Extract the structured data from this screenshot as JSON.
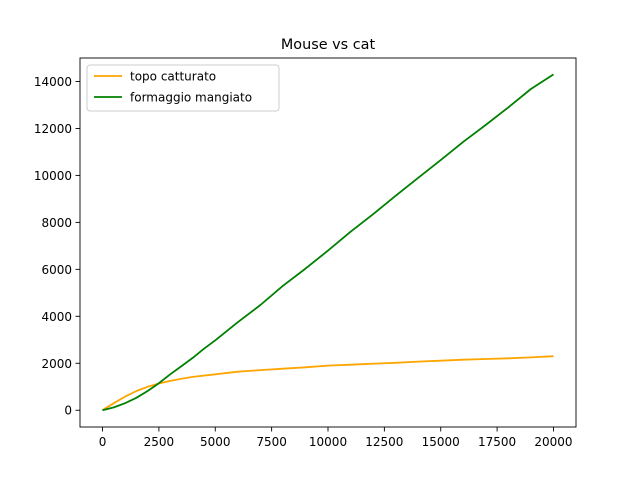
{
  "chart_data": {
    "type": "line",
    "title": "Mouse vs cat",
    "xlabel": "",
    "ylabel": "",
    "xlim": [
      -1000,
      21000
    ],
    "ylim": [
      -714,
      15000
    ],
    "xticks": [
      0,
      2500,
      5000,
      7500,
      10000,
      12500,
      15000,
      17500,
      20000
    ],
    "yticks": [
      0,
      2000,
      4000,
      6000,
      8000,
      10000,
      12000,
      14000
    ],
    "grid": false,
    "legend_position": "upper-left",
    "series": [
      {
        "name": "topo catturato",
        "color": "#ffa500",
        "x": [
          0,
          500,
          1000,
          1500,
          2000,
          2500,
          3000,
          3500,
          4000,
          5000,
          6000,
          7000,
          8000,
          9000,
          10000,
          11000,
          12000,
          13000,
          14000,
          15000,
          16000,
          17000,
          18000,
          19000,
          20000
        ],
        "y": [
          0,
          300,
          580,
          820,
          1000,
          1140,
          1250,
          1340,
          1420,
          1530,
          1640,
          1710,
          1770,
          1830,
          1900,
          1940,
          1980,
          2020,
          2070,
          2110,
          2150,
          2180,
          2210,
          2250,
          2300
        ]
      },
      {
        "name": "formaggio mangiato",
        "color": "#008000",
        "x": [
          0,
          500,
          1000,
          1500,
          2000,
          2500,
          3000,
          3500,
          4000,
          4500,
          5000,
          6000,
          7000,
          8000,
          9000,
          10000,
          11000,
          12000,
          13000,
          14000,
          15000,
          16000,
          17000,
          18000,
          19000,
          20000
        ],
        "y": [
          0,
          120,
          300,
          530,
          820,
          1150,
          1530,
          1880,
          2230,
          2620,
          2980,
          3750,
          4480,
          5300,
          6030,
          6800,
          7600,
          8350,
          9130,
          9900,
          10650,
          11430,
          12150,
          12900,
          13680,
          14300
        ]
      }
    ]
  }
}
